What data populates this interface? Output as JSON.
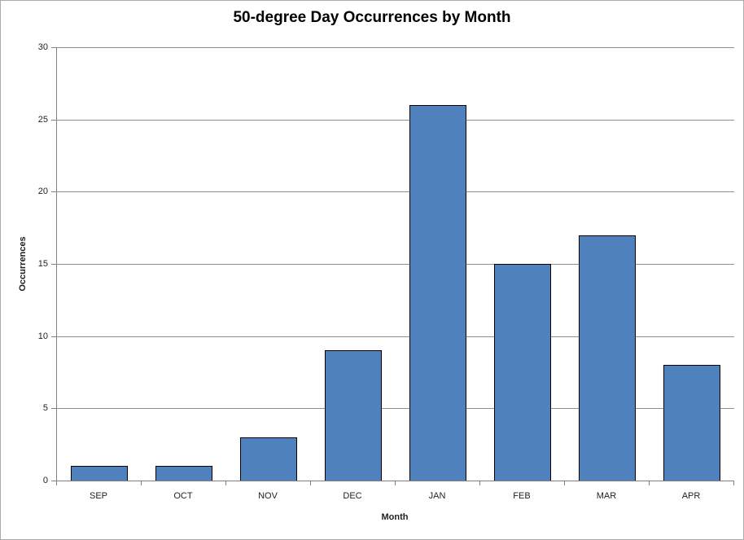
{
  "window": {
    "background": "#FFFFFF",
    "border_color": "#ABABAB"
  },
  "chart_data": {
    "type": "bar",
    "title": "50-degree Day Occurrences by Month",
    "xlabel": "Month",
    "ylabel": "Occurrences",
    "categories": [
      "SEP",
      "OCT",
      "NOV",
      "DEC",
      "JAN",
      "FEB",
      "MAR",
      "APR"
    ],
    "values": [
      1,
      1,
      3,
      9,
      26,
      15,
      17,
      8
    ],
    "ylim": [
      0,
      30
    ],
    "y_ticks": [
      0,
      5,
      10,
      15,
      20,
      25,
      30
    ],
    "grid": true,
    "legend_position": "none",
    "bar_fill": "#4F81BD",
    "bar_border": "#000000",
    "gridline_color": "#8F8F8F",
    "axis_color": "#808080",
    "text_color": "#1F1F1F"
  }
}
